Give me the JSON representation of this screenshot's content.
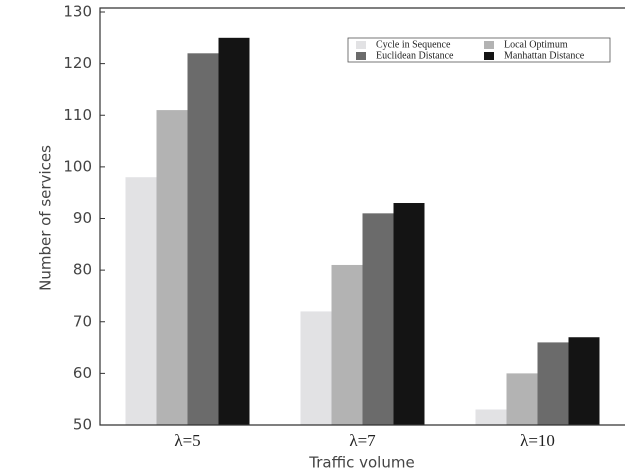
{
  "chart_data": {
    "type": "bar",
    "xlabel": "Traffic volume",
    "ylabel": "Number of services",
    "categories": [
      "λ=5",
      "λ=7",
      "λ=10"
    ],
    "series": [
      {
        "name": "Cycle in Sequence",
        "color": "#e2e2e4",
        "values": [
          98,
          72,
          53
        ]
      },
      {
        "name": "Local Optimum",
        "color": "#b3b3b3",
        "values": [
          111,
          81,
          60
        ]
      },
      {
        "name": "Euclidean Distance",
        "color": "#6b6b6b",
        "values": [
          122,
          91,
          66
        ]
      },
      {
        "name": "Manhattan Distance",
        "color": "#141414",
        "values": [
          125,
          93,
          67
        ]
      }
    ],
    "ylim": [
      50,
      130
    ],
    "yticks": [
      50,
      60,
      70,
      80,
      90,
      100,
      110,
      120,
      130
    ],
    "legend": "upper right",
    "grid": false
  }
}
